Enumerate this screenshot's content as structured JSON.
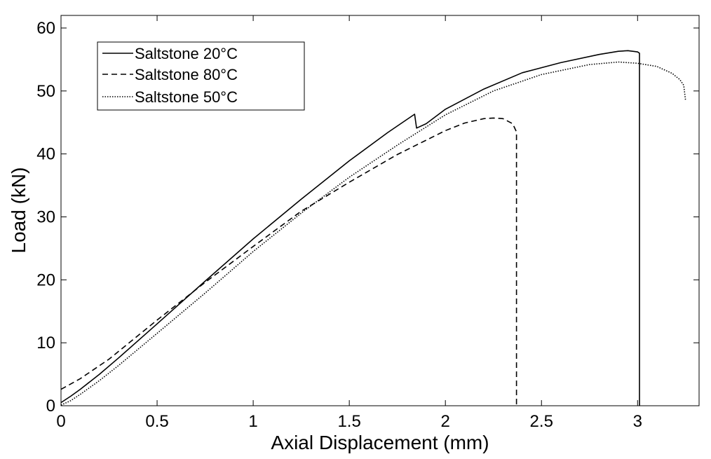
{
  "chart_data": {
    "type": "line",
    "title": "",
    "xlabel": "Axial Displacement (mm)",
    "ylabel": "Load (kN)",
    "xlim": [
      0,
      3.32
    ],
    "ylim": [
      0,
      62
    ],
    "xticks": [
      0,
      0.5,
      1,
      1.5,
      2,
      2.5,
      3
    ],
    "xtick_labels": [
      "0",
      "0.5",
      "1",
      "1.5",
      "2",
      "2.5",
      "3"
    ],
    "yticks": [
      0,
      10,
      20,
      30,
      40,
      50,
      60
    ],
    "ytick_labels": [
      "0",
      "10",
      "20",
      "30",
      "40",
      "50",
      "60"
    ],
    "grid": false,
    "legend_position": "top-left",
    "series": [
      {
        "name": "Saltstone 20°C",
        "style": "solid",
        "color": "#000000",
        "x": [
          0,
          0.05,
          0.1,
          0.2,
          0.3,
          0.5,
          0.75,
          1.0,
          1.25,
          1.5,
          1.7,
          1.84,
          1.85,
          1.9,
          2.0,
          2.2,
          2.4,
          2.6,
          2.8,
          2.9,
          2.95,
          3.0,
          3.01,
          3.01
        ],
        "y": [
          0.5,
          1.5,
          2.6,
          5.0,
          7.6,
          13.0,
          19.8,
          26.5,
          32.8,
          38.9,
          43.4,
          46.3,
          44.1,
          44.8,
          47.1,
          50.3,
          52.9,
          54.5,
          55.8,
          56.3,
          56.4,
          56.2,
          56.0,
          0
        ]
      },
      {
        "name": "Saltstone 80°C",
        "style": "dashed",
        "color": "#000000",
        "x": [
          0,
          0.1,
          0.25,
          0.5,
          0.75,
          1.0,
          1.25,
          1.5,
          1.75,
          2.0,
          2.1,
          2.2,
          2.25,
          2.3,
          2.35,
          2.37,
          2.37
        ],
        "y": [
          2.6,
          4.3,
          7.4,
          13.6,
          19.6,
          25.3,
          30.9,
          35.5,
          39.9,
          43.7,
          44.9,
          45.6,
          45.7,
          45.6,
          44.8,
          43.5,
          0
        ]
      },
      {
        "name": "Saltstone 50°C",
        "style": "dotted",
        "color": "#000000",
        "x": [
          0,
          0.05,
          0.1,
          0.2,
          0.3,
          0.5,
          0.75,
          1.0,
          1.25,
          1.5,
          1.75,
          2.0,
          2.25,
          2.5,
          2.75,
          2.9,
          3.0,
          3.1,
          3.18,
          3.22,
          3.24,
          3.25
        ],
        "y": [
          0.1,
          0.8,
          1.8,
          4.0,
          6.4,
          11.5,
          17.9,
          24.5,
          30.6,
          36.3,
          41.4,
          46.2,
          50.0,
          52.6,
          54.2,
          54.6,
          54.4,
          53.9,
          52.8,
          51.8,
          50.9,
          48.4
        ]
      }
    ]
  }
}
